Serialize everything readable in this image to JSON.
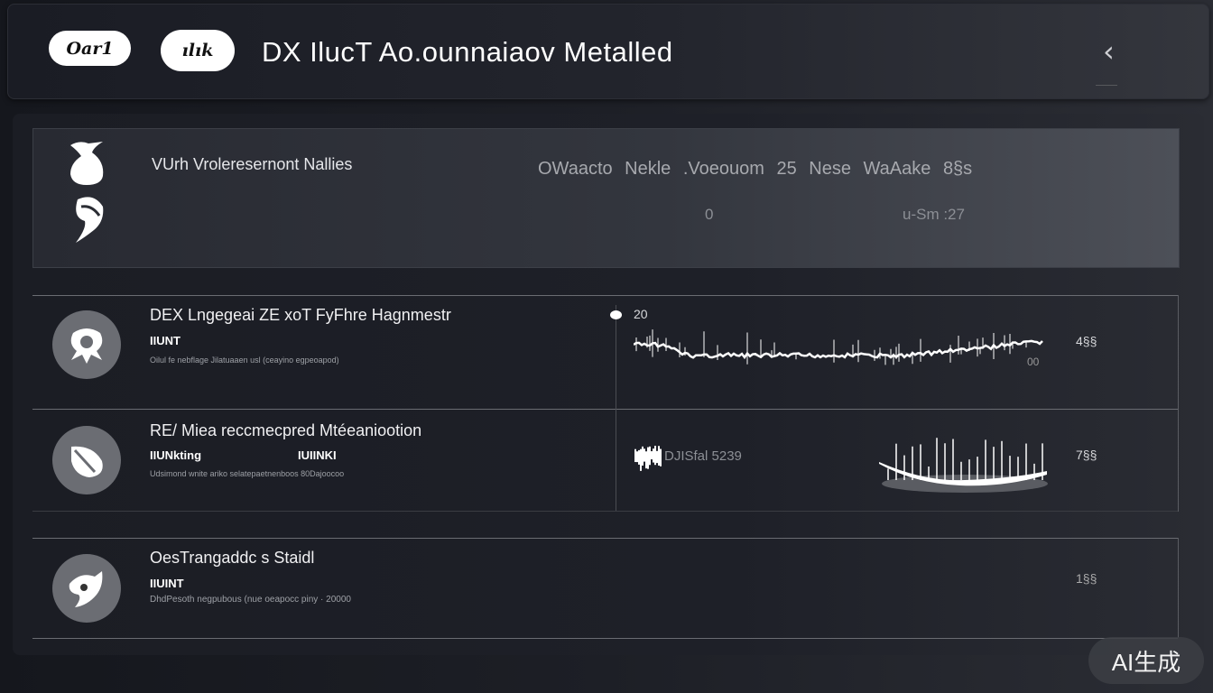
{
  "header": {
    "pill_1": "Oar1",
    "pill_2": "ılık",
    "title": "DX IlucT Ao.ounnaiaov Metalled",
    "back_icon": "chevron-left-icon",
    "back_sub": "————"
  },
  "summary": {
    "title": "VUrh Vroleresernont Nallies",
    "stats_line": "OWaacto Nekle .Voeouom  25 Nese  WaAake  8§s",
    "value_1": "0",
    "value_2": "u-Sm  :27",
    "icons": [
      "bird-icon",
      "wave-icon"
    ]
  },
  "rows": [
    {
      "title": "DEX Lngegeai ZE xoT FyFhre Hagnmestr",
      "subtitle": "IIUNT",
      "description": "Oilul fe nebflage Jilatuaaen usl (ceayino egpeoapod)",
      "chart_label": "20",
      "chart_end_label": "00",
      "side_value": "4§§",
      "icon": "shield-bird-icon"
    },
    {
      "title": "RE/ Miea reccmecpred Mtéeaniootion",
      "subtitle": "IIUNkting",
      "subtitle_2": "IUIINKI",
      "description": "Udsimond wnite ariko selatepaetnenboos 80Dajoocoo",
      "chart_label": "DJISfal 5239",
      "side_value": "7§§",
      "icon": "leaf-icon"
    },
    {
      "title": "OesTrangaddc s Staidl",
      "subtitle": "IIUINT",
      "description": "DhdPesoth negpubous (nue oeapocc piny · 20000",
      "side_value": "1§§",
      "icon": "swirl-icon"
    }
  ],
  "watermark": "AI生成"
}
